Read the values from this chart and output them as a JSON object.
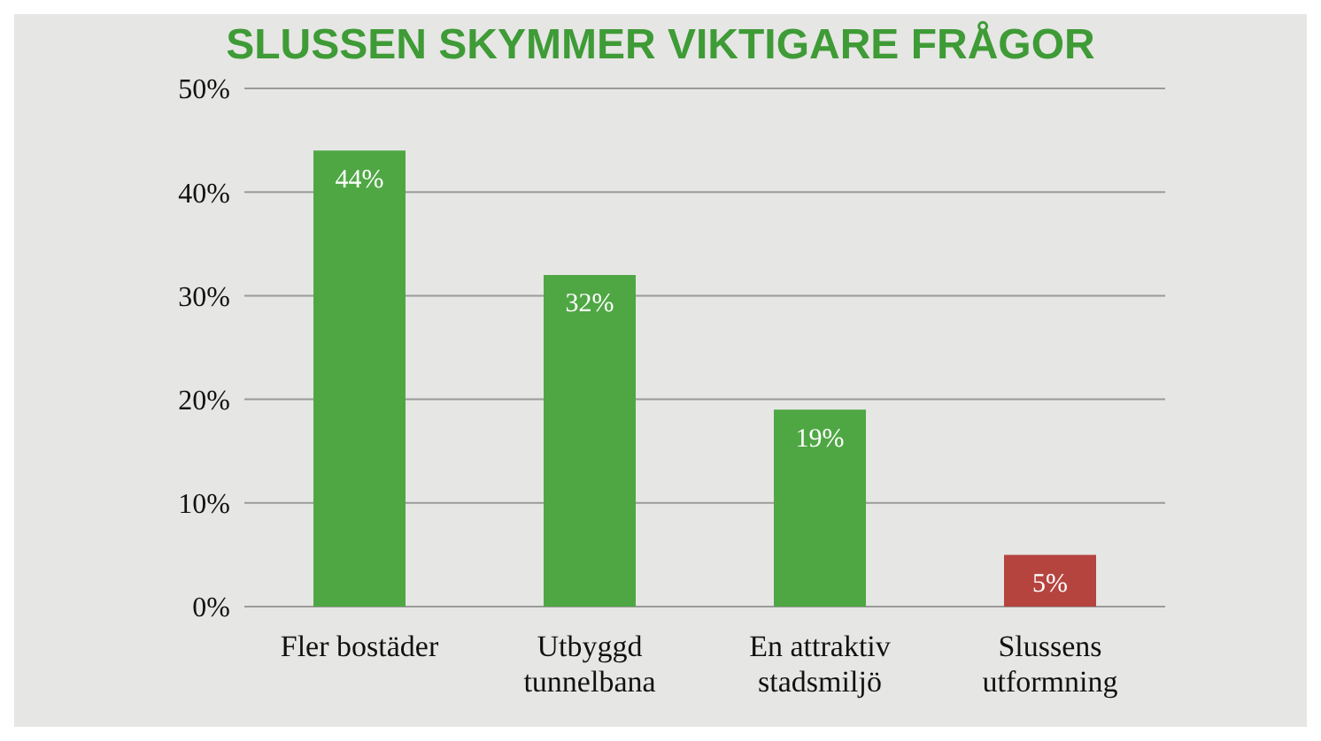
{
  "chart_data": {
    "type": "bar",
    "title": "SLUSSEN SKYMMER VIKTIGARE FRÅGOR",
    "categories": [
      "Fler bostäder",
      "Utbyggd tunnelbana",
      "En attraktiv stadsmiljö",
      "Slussens utformning"
    ],
    "values": [
      44,
      32,
      19,
      5
    ],
    "colors": [
      "#4fa744",
      "#4fa744",
      "#4fa744",
      "#b5443f"
    ],
    "value_labels": [
      "44%",
      "32%",
      "19%",
      "5%"
    ],
    "ylim": [
      0,
      50
    ],
    "yticks": [
      {
        "value": 0,
        "label": "0%"
      },
      {
        "value": 10,
        "label": "10%"
      },
      {
        "value": 20,
        "label": "20%"
      },
      {
        "value": 30,
        "label": "30%"
      },
      {
        "value": 40,
        "label": "40%"
      },
      {
        "value": 50,
        "label": "50%"
      }
    ],
    "grid": "y"
  }
}
